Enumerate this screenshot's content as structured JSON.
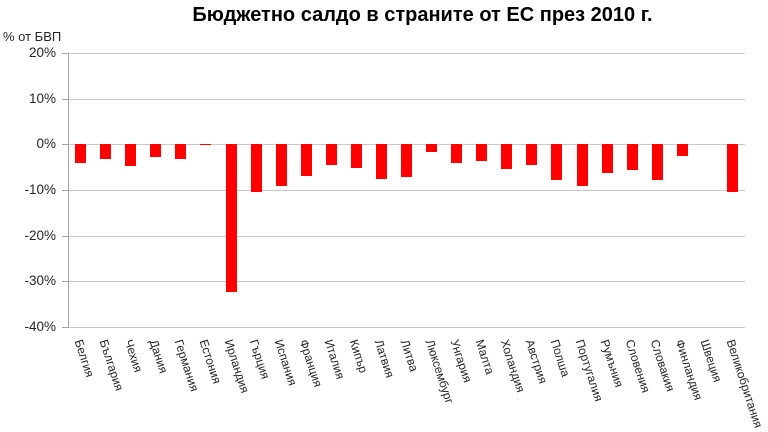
{
  "title": "Бюджетно салдо в страните от ЕС през 2010 г.",
  "y_axis_unit": "% от БВП",
  "colors": {
    "bar": "#ff0000",
    "gridline": "#c9c9c9",
    "axis": "#a6a6a6",
    "text": "#262626",
    "title": "#000000",
    "background": "#ffffff"
  },
  "chart_data": {
    "type": "bar",
    "title": "Бюджетно салдо в страните от ЕС през 2010 г.",
    "ylabel": "% от БВП",
    "xlabel": "",
    "ylim": [
      -40,
      20
    ],
    "ytick_step": 10,
    "ytick_labels": [
      "20%",
      "10%",
      "0%",
      "-10%",
      "-20%",
      "-30%",
      "-40%"
    ],
    "grid": true,
    "legend": "none",
    "categories": [
      "Белгия",
      "България",
      "Чехия",
      "Дания",
      "Германия",
      "Естония",
      "Ирландия",
      "Гърция",
      "Испания",
      "Франция",
      "Италия",
      "Кипър",
      "Латвия",
      "Литва",
      "Люксембург",
      "Унгария",
      "Малта",
      "Холандия",
      "Австрия",
      "Полша",
      "Португалия",
      "Румъния",
      "Словения",
      "Словакия",
      "Финландия",
      "Швеция",
      "Великобритания"
    ],
    "values": [
      -4.1,
      -3.2,
      -4.7,
      -2.7,
      -3.3,
      0.1,
      -32.4,
      -10.5,
      -9.2,
      -7.0,
      -4.6,
      -5.3,
      -7.7,
      -7.1,
      -1.7,
      -4.2,
      -3.6,
      -5.4,
      -4.6,
      -7.9,
      -9.1,
      -6.4,
      -5.6,
      -7.9,
      -2.5,
      0.0,
      -10.4
    ]
  }
}
